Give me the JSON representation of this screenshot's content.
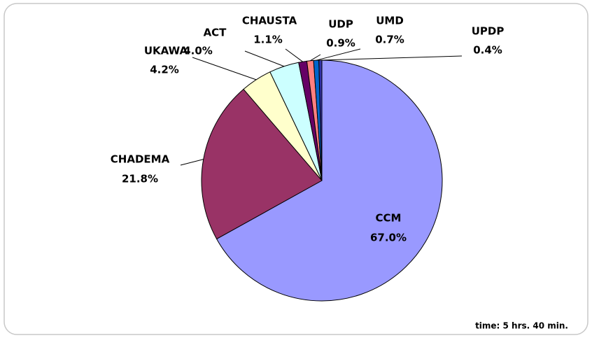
{
  "chart_data": {
    "type": "pie",
    "categories": [
      "CCM",
      "CHADEMA",
      "UKAWA",
      "ACT",
      "CHAUSTA",
      "UDP",
      "UMD",
      "UPDP"
    ],
    "values": [
      67.0,
      21.8,
      4.2,
      4.0,
      1.1,
      0.9,
      0.7,
      0.4
    ],
    "value_labels": [
      "67.0%",
      "21.8%",
      "4.2%",
      "4.0%",
      "1.1%",
      "0.9%",
      "0.7%",
      "0.4%"
    ],
    "colors": [
      "#9999ff",
      "#993366",
      "#ffffcc",
      "#ccffff",
      "#660066",
      "#ff8080",
      "#0066cc",
      "#3333aa"
    ],
    "annotation": "time: 5 hrs. 40 min."
  }
}
